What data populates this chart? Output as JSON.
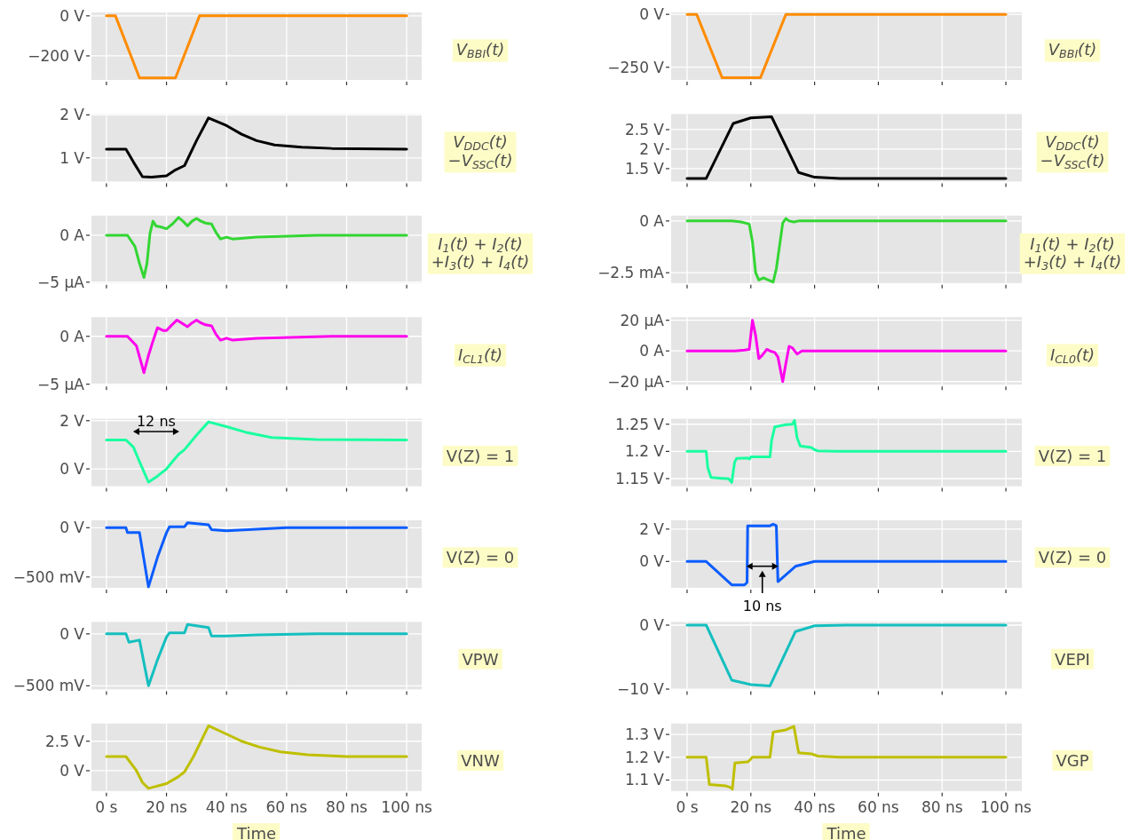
{
  "chart_data": [
    {
      "type": "line",
      "ylabel": "V$_{BBI}$(t)",
      "x": [
        0,
        3,
        11,
        23,
        31,
        100
      ],
      "series": [
        {
          "color": "#ff8c00",
          "values": [
            0,
            0,
            -310,
            -310,
            0,
            0
          ]
        }
      ],
      "xlim": [
        -5,
        105
      ],
      "xticks": [
        0,
        20,
        40,
        60,
        80,
        100
      ],
      "ylim": [
        -320,
        17
      ],
      "yticks": [
        {
          "value": 0,
          "label": "0 V"
        },
        {
          "value": -200,
          "label": "−200 V"
        }
      ],
      "grid": true,
      "tick_labels": "y"
    },
    {
      "type": "line",
      "ylabel": "V$_{BBI}$(t)",
      "x": [
        0,
        3,
        11,
        23,
        31,
        100
      ],
      "series": [
        {
          "color": "#ff8c00",
          "values": [
            0,
            0,
            -300,
            -300,
            0,
            0
          ]
        }
      ],
      "xlim": [
        -5,
        105
      ],
      "xticks": [
        0,
        20,
        40,
        60,
        80,
        100
      ],
      "ylim": [
        -310,
        9
      ],
      "yticks": [
        {
          "value": 0,
          "label": "0 V"
        },
        {
          "value": -250,
          "label": "−250 V"
        }
      ],
      "grid": true,
      "tick_labels": "y"
    },
    {
      "type": "line",
      "ylabel": "V$_{DDC}$(t)\n−V$_{SSC}$(t)",
      "x": [
        0,
        6.5,
        9,
        12,
        15,
        20,
        23,
        26,
        30,
        34,
        40,
        45,
        50,
        56,
        65,
        75,
        100
      ],
      "series": [
        {
          "color": "#000000",
          "values": [
            1.2,
            1.2,
            0.9,
            0.56,
            0.55,
            0.58,
            0.72,
            0.82,
            1.4,
            1.93,
            1.75,
            1.55,
            1.4,
            1.3,
            1.25,
            1.22,
            1.2
          ]
        }
      ],
      "xlim": [
        -5,
        105
      ],
      "xticks": [
        0,
        20,
        40,
        60,
        80,
        100
      ],
      "ylim": [
        0.45,
        2.02
      ],
      "yticks": [
        {
          "value": 1,
          "label": "1 V"
        },
        {
          "value": 2,
          "label": "2 V"
        }
      ],
      "grid": true,
      "tick_labels": "y"
    },
    {
      "type": "line",
      "ylabel": "V$_{DDC}$(t)\n−V$_{SSC}$(t)",
      "x": [
        0,
        6,
        14.5,
        20,
        26.5,
        35,
        40,
        48,
        100
      ],
      "series": [
        {
          "color": "#000000",
          "values": [
            1.25,
            1.25,
            2.66,
            2.8,
            2.83,
            1.4,
            1.28,
            1.25,
            1.25
          ]
        }
      ],
      "xlim": [
        -5,
        105
      ],
      "xticks": [
        0,
        20,
        40,
        60,
        80,
        100
      ],
      "ylim": [
        1.17,
        2.9
      ],
      "yticks": [
        {
          "value": 1.5,
          "label": "1.5 V"
        },
        {
          "value": 2,
          "label": "2 V"
        },
        {
          "value": 2.5,
          "label": "2.5 V"
        }
      ],
      "grid": true,
      "tick_labels": "y"
    },
    {
      "type": "line",
      "ylabel": "I$_{1}$(t) + I$_{2}$(t)\n+I$_{3}$(t) + I$_{4}$(t)",
      "x": [
        0,
        7,
        9.5,
        11,
        12.5,
        13.5,
        14.5,
        15.5,
        16.5,
        18,
        20,
        22,
        24,
        25.5,
        27,
        28.5,
        30,
        31.5,
        33,
        35,
        36.5,
        38,
        40,
        42,
        50,
        70,
        100
      ],
      "series": [
        {
          "color": "#33d633",
          "values": [
            0,
            0,
            -1.2,
            -3,
            -4.5,
            -3,
            0.2,
            1.5,
            1.0,
            0.9,
            0.7,
            1.2,
            1.9,
            1.5,
            1.0,
            1.5,
            1.8,
            1.5,
            1.3,
            1.2,
            0.3,
            -0.4,
            -0.2,
            -0.4,
            -0.2,
            0,
            0
          ]
        }
      ],
      "xlim": [
        -5,
        105
      ],
      "xticks": [
        0,
        20,
        40,
        60,
        80,
        100
      ],
      "ylim": [
        -5.1,
        2.1
      ],
      "yticks": [
        {
          "value": 0,
          "label": "0 A"
        },
        {
          "value": -5,
          "label": "−5 µA"
        }
      ],
      "grid": true,
      "tick_labels": "y"
    },
    {
      "type": "line",
      "ylabel": "I$_{1}$(t) + I$_{2}$(t)\n+I$_{3}$(t) + I$_{4}$(t)",
      "x": [
        0,
        14,
        17,
        19.5,
        20.5,
        21.5,
        22.5,
        24,
        25,
        27,
        28,
        29,
        30,
        31,
        32,
        33.5,
        35,
        100
      ],
      "series": [
        {
          "color": "#33d633",
          "values": [
            0,
            0,
            -0.05,
            -0.15,
            -1.0,
            -2.5,
            -2.85,
            -2.75,
            -2.82,
            -2.95,
            -2.3,
            -1.2,
            -0.1,
            0.12,
            0,
            -0.05,
            0,
            0
          ]
        }
      ],
      "xlim": [
        -5,
        105
      ],
      "xticks": [
        0,
        20,
        40,
        60,
        80,
        100
      ],
      "ylim": [
        -3.0,
        0.26
      ],
      "yticks": [
        {
          "value": 0,
          "label": "0 A"
        },
        {
          "value": -2.5,
          "label": "−2.5 mA"
        }
      ],
      "grid": true,
      "tick_labels": "y"
    },
    {
      "type": "line",
      "ylabel": "I$_{CL1}$(t)",
      "x": [
        0,
        7,
        10,
        12.5,
        14,
        15.5,
        17,
        19,
        20,
        21.5,
        23.5,
        25.5,
        27,
        28.5,
        30,
        31.5,
        33,
        35,
        36.5,
        38,
        40,
        42,
        50,
        75,
        100
      ],
      "series": [
        {
          "color": "#ff00ee",
          "values": [
            0,
            0,
            -1,
            -3.8,
            -2,
            -0.5,
            0.9,
            0.6,
            0.6,
            1.1,
            1.7,
            1.3,
            1.0,
            1.4,
            1.7,
            1.4,
            1.2,
            1.1,
            0.2,
            -0.4,
            -0.2,
            -0.4,
            -0.2,
            0,
            0
          ]
        }
      ],
      "xlim": [
        -5,
        105
      ],
      "xticks": [
        0,
        20,
        40,
        60,
        80,
        100
      ],
      "ylim": [
        -5.05,
        2.0
      ],
      "yticks": [
        {
          "value": 0,
          "label": "0 A"
        },
        {
          "value": -5,
          "label": "−5 µA"
        }
      ],
      "grid": true,
      "tick_labels": "y"
    },
    {
      "type": "line",
      "ylabel": "I$_{CL0}$(t)",
      "x": [
        0,
        15,
        18,
        19.5,
        20.5,
        21.5,
        22.5,
        23.5,
        25,
        26,
        27.5,
        28.5,
        30,
        31,
        32,
        33,
        34.5,
        36,
        38,
        100
      ],
      "series": [
        {
          "color": "#ff00ee",
          "values": [
            0,
            0,
            0.5,
            1,
            20,
            10,
            -5,
            -3,
            1,
            0,
            -1,
            -4,
            -20,
            -8,
            3,
            2,
            -2,
            0,
            0,
            0
          ]
        }
      ],
      "xlim": [
        -5,
        105
      ],
      "xticks": [
        0,
        20,
        40,
        60,
        80,
        100
      ],
      "ylim": [
        -22,
        22
      ],
      "yticks": [
        {
          "value": 20,
          "label": "20 µA"
        },
        {
          "value": 0,
          "label": "0 A"
        },
        {
          "value": -20,
          "label": "−20 µA"
        }
      ],
      "grid": true,
      "tick_labels": "y"
    },
    {
      "type": "line",
      "ylabel": "V(Z) = 1",
      "x": [
        0,
        6.5,
        9,
        11,
        14,
        17,
        20,
        24,
        26,
        30,
        34,
        40,
        47,
        55,
        70,
        100
      ],
      "series": [
        {
          "color": "#1affa0",
          "values": [
            1.2,
            1.2,
            0.9,
            0.3,
            -0.55,
            -0.3,
            0,
            0.6,
            0.8,
            1.4,
            1.95,
            1.75,
            1.5,
            1.3,
            1.22,
            1.2
          ]
        }
      ],
      "xlim": [
        -5,
        105
      ],
      "xticks": [
        0,
        20,
        40,
        60,
        80,
        100
      ],
      "ylim": [
        -0.72,
        2.08
      ],
      "yticks": [
        {
          "value": 0,
          "label": "0 V"
        },
        {
          "value": 2,
          "label": "2 V"
        }
      ],
      "grid": true,
      "tick_labels": "y",
      "annotations": [
        "12 ns"
      ]
    },
    {
      "type": "line",
      "ylabel": "V(Z) = 1",
      "x": [
        0,
        6,
        6.5,
        7.5,
        12,
        13,
        14,
        14.9,
        15.5,
        19,
        19.6,
        20,
        26,
        26.5,
        27.5,
        31,
        33,
        33.7,
        34.5,
        35.5,
        39,
        40,
        41,
        47,
        100
      ],
      "series": [
        {
          "color": "#1affa0",
          "values": [
            1.2,
            1.2,
            1.17,
            1.152,
            1.15,
            1.15,
            1.143,
            1.18,
            1.187,
            1.188,
            1.186,
            1.19,
            1.19,
            1.22,
            1.245,
            1.249,
            1.25,
            1.257,
            1.225,
            1.21,
            1.207,
            1.203,
            1.201,
            1.2,
            1.2
          ]
        }
      ],
      "xlim": [
        -5,
        105
      ],
      "xticks": [
        0,
        20,
        40,
        60,
        80,
        100
      ],
      "ylim": [
        1.136,
        1.26
      ],
      "yticks": [
        {
          "value": 1.15,
          "label": "1.15 V"
        },
        {
          "value": 1.2,
          "label": "1.2 V"
        },
        {
          "value": 1.25,
          "label": "1.25 V"
        }
      ],
      "grid": true,
      "tick_labels": "y"
    },
    {
      "type": "line",
      "ylabel": "V(Z) = 0",
      "x": [
        0,
        6.5,
        7,
        11,
        14,
        17,
        20,
        21,
        26,
        27,
        34,
        35,
        40,
        60,
        100
      ],
      "series": [
        {
          "color": "#0a5cff",
          "values": [
            0,
            0,
            -50,
            -50,
            -600,
            -300,
            -50,
            10,
            10,
            50,
            30,
            -20,
            -30,
            0,
            0
          ]
        }
      ],
      "xlim": [
        -5,
        105
      ],
      "xticks": [
        0,
        20,
        40,
        60,
        80,
        100
      ],
      "ylim": [
        -610,
        75
      ],
      "yticks": [
        {
          "value": 0,
          "label": "0 V"
        },
        {
          "value": -500,
          "label": "−500 mV"
        }
      ],
      "grid": true,
      "tick_labels": "y"
    },
    {
      "type": "line",
      "ylabel": "V(Z) = 0",
      "x": [
        0,
        6,
        14,
        18,
        18.8,
        19,
        26,
        27,
        28,
        28.5,
        34,
        40,
        100
      ],
      "series": [
        {
          "color": "#0a5cff",
          "values": [
            0,
            0,
            -1.45,
            -1.45,
            -1.3,
            2.2,
            2.2,
            2.3,
            2.2,
            -1.25,
            -0.3,
            0,
            0
          ]
        }
      ],
      "xlim": [
        -5,
        105
      ],
      "xticks": [
        0,
        20,
        40,
        60,
        80,
        100
      ],
      "ylim": [
        -1.63,
        2.54
      ],
      "yticks": [
        {
          "value": 0,
          "label": "0 V"
        },
        {
          "value": 2,
          "label": "2 V"
        }
      ],
      "grid": true,
      "tick_labels": "y",
      "annotations": [
        "10 ns"
      ]
    },
    {
      "type": "line",
      "ylabel": "VPW",
      "x": [
        0,
        6.5,
        7.5,
        11,
        14,
        17,
        20,
        21,
        26,
        27,
        34,
        35,
        40,
        50,
        70,
        100
      ],
      "series": [
        {
          "color": "#14bfbf",
          "values": [
            0,
            0,
            -80,
            -60,
            -500,
            -250,
            -30,
            10,
            10,
            90,
            60,
            -20,
            -20,
            -10,
            0,
            0
          ]
        }
      ],
      "xlim": [
        -5,
        105
      ],
      "xticks": [
        0,
        20,
        40,
        60,
        80,
        100
      ],
      "ylim": [
        -535,
        115
      ],
      "yticks": [
        {
          "value": 0,
          "label": "0 V"
        },
        {
          "value": -500,
          "label": "−500 mV"
        }
      ],
      "grid": true,
      "tick_labels": "y"
    },
    {
      "type": "line",
      "ylabel": "VEPI",
      "x": [
        0,
        6,
        14,
        20,
        26,
        34,
        40,
        50,
        100
      ],
      "series": [
        {
          "color": "#14bfbf",
          "values": [
            0,
            0,
            -8.6,
            -9.3,
            -9.5,
            -1,
            -0.1,
            0,
            0
          ]
        }
      ],
      "xlim": [
        -5,
        105
      ],
      "xticks": [
        0,
        20,
        40,
        60,
        80,
        100
      ],
      "ylim": [
        -10.05,
        0.5
      ],
      "yticks": [
        {
          "value": 0,
          "label": "0 V"
        },
        {
          "value": -10,
          "label": "−10 V"
        }
      ],
      "grid": true,
      "tick_labels": "y"
    },
    {
      "type": "line",
      "ylabel": "VNW",
      "xlabel": "Time",
      "x": [
        0,
        6.5,
        10,
        12,
        14,
        20,
        24,
        26,
        29,
        34,
        40,
        45,
        51,
        58,
        67,
        80,
        100
      ],
      "series": [
        {
          "color": "#bfbf00",
          "values": [
            1.2,
            1.2,
            0,
            -1.0,
            -1.5,
            -1.1,
            -0.5,
            -0.1,
            1.2,
            3.8,
            3.1,
            2.5,
            2.0,
            1.6,
            1.35,
            1.2,
            1.2
          ]
        }
      ],
      "xlim": [
        -5,
        105
      ],
      "xticks": [
        {
          "value": 0,
          "label": "0 s"
        },
        {
          "value": 20,
          "label": "20 ns"
        },
        {
          "value": 40,
          "label": "40 ns"
        },
        {
          "value": 60,
          "label": "60 ns"
        },
        {
          "value": 80,
          "label": "80 ns"
        },
        {
          "value": 100,
          "label": "100 ns"
        }
      ],
      "ylim": [
        -1.72,
        4.0
      ],
      "yticks": [
        {
          "value": 0,
          "label": "0 V"
        },
        {
          "value": 2.5,
          "label": "2.5 V"
        }
      ],
      "grid": true
    },
    {
      "type": "line",
      "ylabel": "VGP",
      "xlabel": "Time",
      "x": [
        0,
        6,
        7,
        12,
        13,
        14,
        14.2,
        15,
        19,
        19.5,
        20.5,
        26,
        27,
        31,
        33.5,
        35,
        39,
        41,
        48,
        100
      ],
      "series": [
        {
          "color": "#bfbf00",
          "values": [
            1.2,
            1.2,
            1.08,
            1.075,
            1.07,
            1.065,
            1.06,
            1.175,
            1.18,
            1.185,
            1.2,
            1.2,
            1.31,
            1.32,
            1.335,
            1.22,
            1.215,
            1.205,
            1.2,
            1.2
          ]
        }
      ],
      "xlim": [
        -5,
        105
      ],
      "xticks": [
        {
          "value": 0,
          "label": "0 s"
        },
        {
          "value": 20,
          "label": "20 ns"
        },
        {
          "value": 40,
          "label": "40 ns"
        },
        {
          "value": 60,
          "label": "60 ns"
        },
        {
          "value": 80,
          "label": "80 ns"
        },
        {
          "value": 100,
          "label": "100 ns"
        }
      ],
      "ylim": [
        1.052,
        1.348
      ],
      "yticks": [
        {
          "value": 1.1,
          "label": "1.1 V"
        },
        {
          "value": 1.2,
          "label": "1.2 V"
        },
        {
          "value": 1.3,
          "label": "1.3 V"
        }
      ],
      "grid": true
    }
  ]
}
